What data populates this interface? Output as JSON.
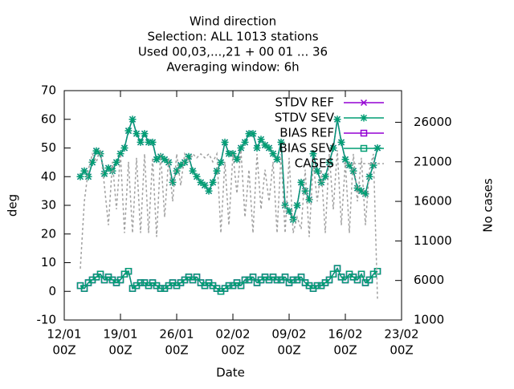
{
  "chart_data": {
    "type": "line",
    "title": [
      "Wind direction",
      "Selection: ALL    1013 stations",
      "Used  00,03,...,21  + 00 01 ... 36",
      "Averaging window:  6h"
    ],
    "xlabel": "Date",
    "ylabel": "deg",
    "y2label": "No cases",
    "xlim": [
      0,
      42
    ],
    "ylim": [
      -10,
      70
    ],
    "y2lim": [
      1000,
      30000
    ],
    "xticks": [
      {
        "value": 0,
        "label": [
          "12/01",
          "00Z"
        ]
      },
      {
        "value": 7,
        "label": [
          "19/01",
          "00Z"
        ]
      },
      {
        "value": 14,
        "label": [
          "26/01",
          "00Z"
        ]
      },
      {
        "value": 21,
        "label": [
          "02/02",
          "00Z"
        ]
      },
      {
        "value": 28,
        "label": [
          "09/02",
          "00Z"
        ]
      },
      {
        "value": 35,
        "label": [
          "16/02",
          "00Z"
        ]
      },
      {
        "value": 42,
        "label": [
          "23/02",
          "00Z"
        ]
      }
    ],
    "yticks": [
      -10,
      0,
      10,
      20,
      30,
      40,
      50,
      60,
      70
    ],
    "y2ticks": [
      1000,
      6000,
      11000,
      16000,
      21000,
      26000
    ],
    "grid": false,
    "legend": "top-right",
    "x": [
      2,
      2.5,
      3,
      3.5,
      4,
      4.5,
      5,
      5.5,
      6,
      6.5,
      7,
      7.5,
      8,
      8.5,
      9,
      9.5,
      10,
      10.5,
      11,
      11.5,
      12,
      12.5,
      13,
      13.5,
      14,
      14.5,
      15,
      15.5,
      16,
      16.5,
      17,
      17.5,
      18,
      18.5,
      19,
      19.5,
      20,
      20.5,
      21,
      21.5,
      22,
      22.5,
      23,
      23.5,
      24,
      24.5,
      25,
      25.5,
      26,
      26.5,
      27,
      27.5,
      28,
      28.5,
      29,
      29.5,
      30,
      30.5,
      31,
      31.5,
      32,
      32.5,
      33,
      33.5,
      34,
      34.5,
      35,
      35.5,
      36,
      36.5,
      37,
      37.5,
      38,
      38.5,
      39
    ],
    "series": [
      {
        "name": "STDV REF",
        "color": "#9400d3",
        "marker": "cross",
        "values": [
          40,
          42,
          40,
          45,
          49,
          48,
          41,
          43,
          42,
          45,
          48,
          50,
          56,
          60,
          55,
          52,
          55,
          52,
          52,
          46,
          47,
          46,
          45,
          38,
          42,
          44,
          45,
          47,
          42,
          40,
          38,
          37,
          35,
          38,
          42,
          45,
          52,
          48,
          48,
          46,
          50,
          52,
          55,
          55,
          50,
          53,
          51,
          50,
          48,
          46,
          52,
          30,
          28,
          25,
          30,
          38,
          35,
          32,
          48,
          42,
          38,
          40,
          45,
          50,
          60,
          52,
          46,
          44,
          42,
          36,
          35,
          34,
          40,
          44,
          50
        ]
      },
      {
        "name": "STDV SEV",
        "color": "#009e73",
        "marker": "star",
        "values": [
          40,
          42,
          40,
          45,
          49,
          48,
          41,
          43,
          42,
          45,
          48,
          50,
          56,
          60,
          55,
          52,
          55,
          52,
          52,
          46,
          47,
          46,
          45,
          38,
          42,
          44,
          45,
          47,
          42,
          40,
          38,
          37,
          35,
          38,
          42,
          45,
          52,
          48,
          48,
          46,
          50,
          52,
          55,
          55,
          50,
          53,
          51,
          50,
          48,
          46,
          52,
          30,
          28,
          25,
          30,
          38,
          35,
          32,
          48,
          42,
          38,
          40,
          45,
          50,
          60,
          52,
          46,
          44,
          42,
          36,
          35,
          34,
          40,
          44,
          50
        ]
      },
      {
        "name": "BIAS REF",
        "color": "#9400d3",
        "marker": "square",
        "values": [
          2,
          1,
          3,
          4,
          5,
          6,
          4,
          5,
          4,
          3,
          4,
          6,
          7,
          1,
          2,
          3,
          3,
          2,
          3,
          2,
          1,
          1,
          2,
          3,
          2,
          3,
          4,
          5,
          4,
          5,
          3,
          2,
          3,
          2,
          1,
          0,
          1,
          2,
          2,
          3,
          2,
          4,
          4,
          5,
          3,
          4,
          5,
          4,
          5,
          4,
          4,
          5,
          3,
          4,
          4,
          5,
          3,
          2,
          1,
          2,
          2,
          3,
          4,
          6,
          8,
          5,
          4,
          6,
          5,
          4,
          6,
          3,
          4,
          6,
          7
        ]
      },
      {
        "name": "BIAS SEV",
        "color": "#009e73",
        "marker": "square",
        "values": [
          2,
          1,
          3,
          4,
          5,
          6,
          4,
          5,
          4,
          3,
          4,
          6,
          7,
          1,
          2,
          3,
          3,
          2,
          3,
          2,
          1,
          1,
          2,
          3,
          2,
          3,
          4,
          5,
          4,
          5,
          3,
          2,
          3,
          2,
          1,
          0,
          1,
          2,
          2,
          3,
          2,
          4,
          4,
          5,
          3,
          4,
          5,
          4,
          5,
          4,
          4,
          5,
          3,
          4,
          4,
          5,
          3,
          2,
          1,
          2,
          2,
          3,
          4,
          6,
          8,
          5,
          4,
          6,
          5,
          4,
          6,
          3,
          4,
          6,
          7
        ]
      },
      {
        "name": "CASES",
        "color": "#a0a0a0",
        "style": "dashed",
        "axis": "y2",
        "values": [
          7500,
          16000,
          20000,
          22000,
          21000,
          22500,
          18000,
          13000,
          21000,
          15000,
          22000,
          12000,
          21000,
          12000,
          21500,
          12000,
          22000,
          12000,
          21500,
          11500,
          22000,
          14000,
          21500,
          16000,
          22000,
          18000,
          22000,
          21000,
          22000,
          21500,
          22000,
          21500,
          22000,
          21000,
          22000,
          12000,
          21000,
          13000,
          22000,
          17000,
          22500,
          14000,
          20000,
          12000,
          22000,
          15000,
          20000,
          16000,
          21000,
          12000,
          22000,
          12000,
          21500,
          12000,
          14000,
          12500,
          20000,
          11500,
          21000,
          16000,
          20000,
          12000,
          22000,
          15000,
          22500,
          13000,
          21000,
          12000,
          22000,
          16000,
          21500,
          13000,
          20000,
          22000,
          3700
        ]
      }
    ]
  }
}
